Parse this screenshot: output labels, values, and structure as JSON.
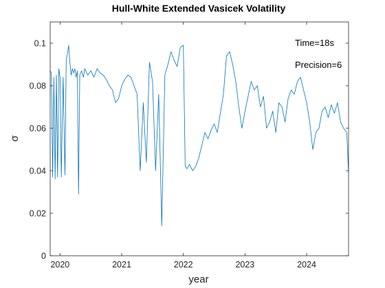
{
  "chart_data": {
    "type": "line",
    "title": "Hull-White Extended Vasicek Volatility",
    "xlabel": "year",
    "ylabel": "σ",
    "xlim": [
      2019.84,
      2024.68
    ],
    "ylim": [
      0,
      0.11
    ],
    "x_ticks": [
      2020,
      2021,
      2022,
      2023,
      2024
    ],
    "x_tick_labels": [
      "2020",
      "2021",
      "2022",
      "2023",
      "2024"
    ],
    "y_ticks": [
      0,
      0.02,
      0.04,
      0.06,
      0.08,
      0.1
    ],
    "y_tick_labels": [
      "0",
      "0.02",
      "0.04",
      "0.06",
      "0.08",
      "0.1"
    ],
    "grid": false,
    "annotations": [
      "Time=18s",
      "Precision=6"
    ],
    "colors": {
      "series": "#0072bd",
      "axes": "#262626"
    },
    "series": [
      {
        "x": [
          2019.84,
          2019.86,
          2019.88,
          2019.9,
          2019.92,
          2019.94,
          2019.96,
          2019.98,
          2020.0,
          2020.02,
          2020.05,
          2020.08,
          2020.1,
          2020.12,
          2020.14,
          2020.16,
          2020.18,
          2020.2,
          2020.22,
          2020.24,
          2020.26,
          2020.28,
          2020.3,
          2020.32,
          2020.35,
          2020.38,
          2020.4,
          2020.45,
          2020.5,
          2020.55,
          2020.6,
          2020.65,
          2020.7,
          2020.75,
          2020.8,
          2020.85,
          2020.9,
          2020.95,
          2021.0,
          2021.05,
          2021.1,
          2021.15,
          2021.2,
          2021.25,
          2021.3,
          2021.35,
          2021.4,
          2021.45,
          2021.5,
          2021.55,
          2021.6,
          2021.65,
          2021.7,
          2021.75,
          2021.8,
          2021.85,
          2021.9,
          2021.95,
          2022.0,
          2022.03,
          2022.06,
          2022.1,
          2022.15,
          2022.2,
          2022.25,
          2022.3,
          2022.35,
          2022.4,
          2022.45,
          2022.5,
          2022.55,
          2022.6,
          2022.65,
          2022.7,
          2022.75,
          2022.8,
          2022.85,
          2022.9,
          2022.95,
          2023.0,
          2023.05,
          2023.1,
          2023.15,
          2023.2,
          2023.25,
          2023.3,
          2023.35,
          2023.4,
          2023.45,
          2023.5,
          2023.55,
          2023.6,
          2023.65,
          2023.7,
          2023.75,
          2023.8,
          2023.85,
          2023.9,
          2023.95,
          2024.0,
          2024.05,
          2024.1,
          2024.15,
          2024.2,
          2024.25,
          2024.3,
          2024.35,
          2024.4,
          2024.45,
          2024.5,
          2024.55,
          2024.6,
          2024.65,
          2024.68
        ],
        "y": [
          0.087,
          0.086,
          0.037,
          0.084,
          0.036,
          0.085,
          0.037,
          0.088,
          0.084,
          0.037,
          0.084,
          0.038,
          0.092,
          0.095,
          0.099,
          0.091,
          0.085,
          0.088,
          0.086,
          0.088,
          0.084,
          0.087,
          0.029,
          0.085,
          0.087,
          0.084,
          0.088,
          0.085,
          0.087,
          0.084,
          0.088,
          0.086,
          0.085,
          0.083,
          0.08,
          0.078,
          0.072,
          0.074,
          0.08,
          0.083,
          0.085,
          0.084,
          0.08,
          0.076,
          0.04,
          0.072,
          0.044,
          0.091,
          0.082,
          0.04,
          0.076,
          0.014,
          0.085,
          0.09,
          0.096,
          0.092,
          0.089,
          0.098,
          0.099,
          0.042,
          0.041,
          0.043,
          0.04,
          0.042,
          0.046,
          0.052,
          0.058,
          0.055,
          0.059,
          0.062,
          0.058,
          0.067,
          0.076,
          0.094,
          0.096,
          0.09,
          0.082,
          0.07,
          0.06,
          0.068,
          0.075,
          0.082,
          0.078,
          0.08,
          0.07,
          0.075,
          0.06,
          0.063,
          0.068,
          0.058,
          0.072,
          0.07,
          0.063,
          0.074,
          0.078,
          0.076,
          0.082,
          0.084,
          0.078,
          0.072,
          0.063,
          0.05,
          0.058,
          0.06,
          0.068,
          0.07,
          0.065,
          0.071,
          0.067,
          0.072,
          0.063,
          0.06,
          0.058,
          0.039
        ]
      }
    ]
  }
}
